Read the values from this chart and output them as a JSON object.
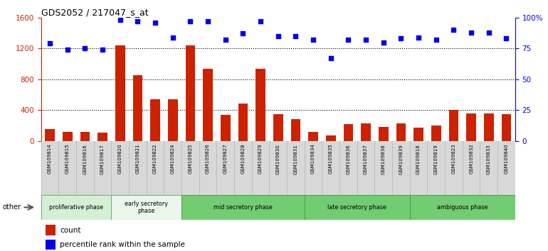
{
  "title": "GDS2052 / 217047_s_at",
  "samples": [
    "GSM109814",
    "GSM109815",
    "GSM109816",
    "GSM109817",
    "GSM109820",
    "GSM109821",
    "GSM109822",
    "GSM109824",
    "GSM109825",
    "GSM109826",
    "GSM109827",
    "GSM109828",
    "GSM109829",
    "GSM109830",
    "GSM109831",
    "GSM109834",
    "GSM109835",
    "GSM109836",
    "GSM109837",
    "GSM109838",
    "GSM109839",
    "GSM109818",
    "GSM109819",
    "GSM109823",
    "GSM109832",
    "GSM109833",
    "GSM109840"
  ],
  "counts": [
    160,
    115,
    115,
    110,
    1240,
    855,
    540,
    540,
    1240,
    935,
    340,
    490,
    935,
    345,
    285,
    120,
    70,
    220,
    225,
    185,
    225,
    175,
    205,
    400,
    355,
    355,
    345
  ],
  "percentiles": [
    79,
    74,
    75,
    74,
    98,
    97,
    96,
    84,
    97,
    97,
    82,
    87,
    97,
    85,
    85,
    82,
    67,
    82,
    82,
    80,
    83,
    84,
    82,
    90,
    88,
    88,
    83
  ],
  "phases": [
    {
      "label": "proliferative phase",
      "start": 0,
      "end": 4,
      "fill": "#d4efd4",
      "edge": "#6ab06a"
    },
    {
      "label": "early secretory\nphase",
      "start": 4,
      "end": 8,
      "fill": "#eaf7ea",
      "edge": "#6ab06a"
    },
    {
      "label": "mid secretory phase",
      "start": 8,
      "end": 15,
      "fill": "#72cc72",
      "edge": "#4a9e4a"
    },
    {
      "label": "late secretory phase",
      "start": 15,
      "end": 21,
      "fill": "#72cc72",
      "edge": "#4a9e4a"
    },
    {
      "label": "ambiguous phase",
      "start": 21,
      "end": 27,
      "fill": "#72cc72",
      "edge": "#4a9e4a"
    }
  ],
  "bar_color": "#cc2200",
  "dot_color": "#0000ee",
  "left_ylim": [
    0,
    1600
  ],
  "right_ylim": [
    0,
    100
  ],
  "left_yticks": [
    0,
    400,
    800,
    1200,
    1600
  ],
  "right_yticks": [
    0,
    25,
    50,
    75,
    100
  ],
  "gridlines": [
    400,
    800,
    1200
  ],
  "bg_color": "#ffffff",
  "xtick_bg": "#d8d8d8"
}
